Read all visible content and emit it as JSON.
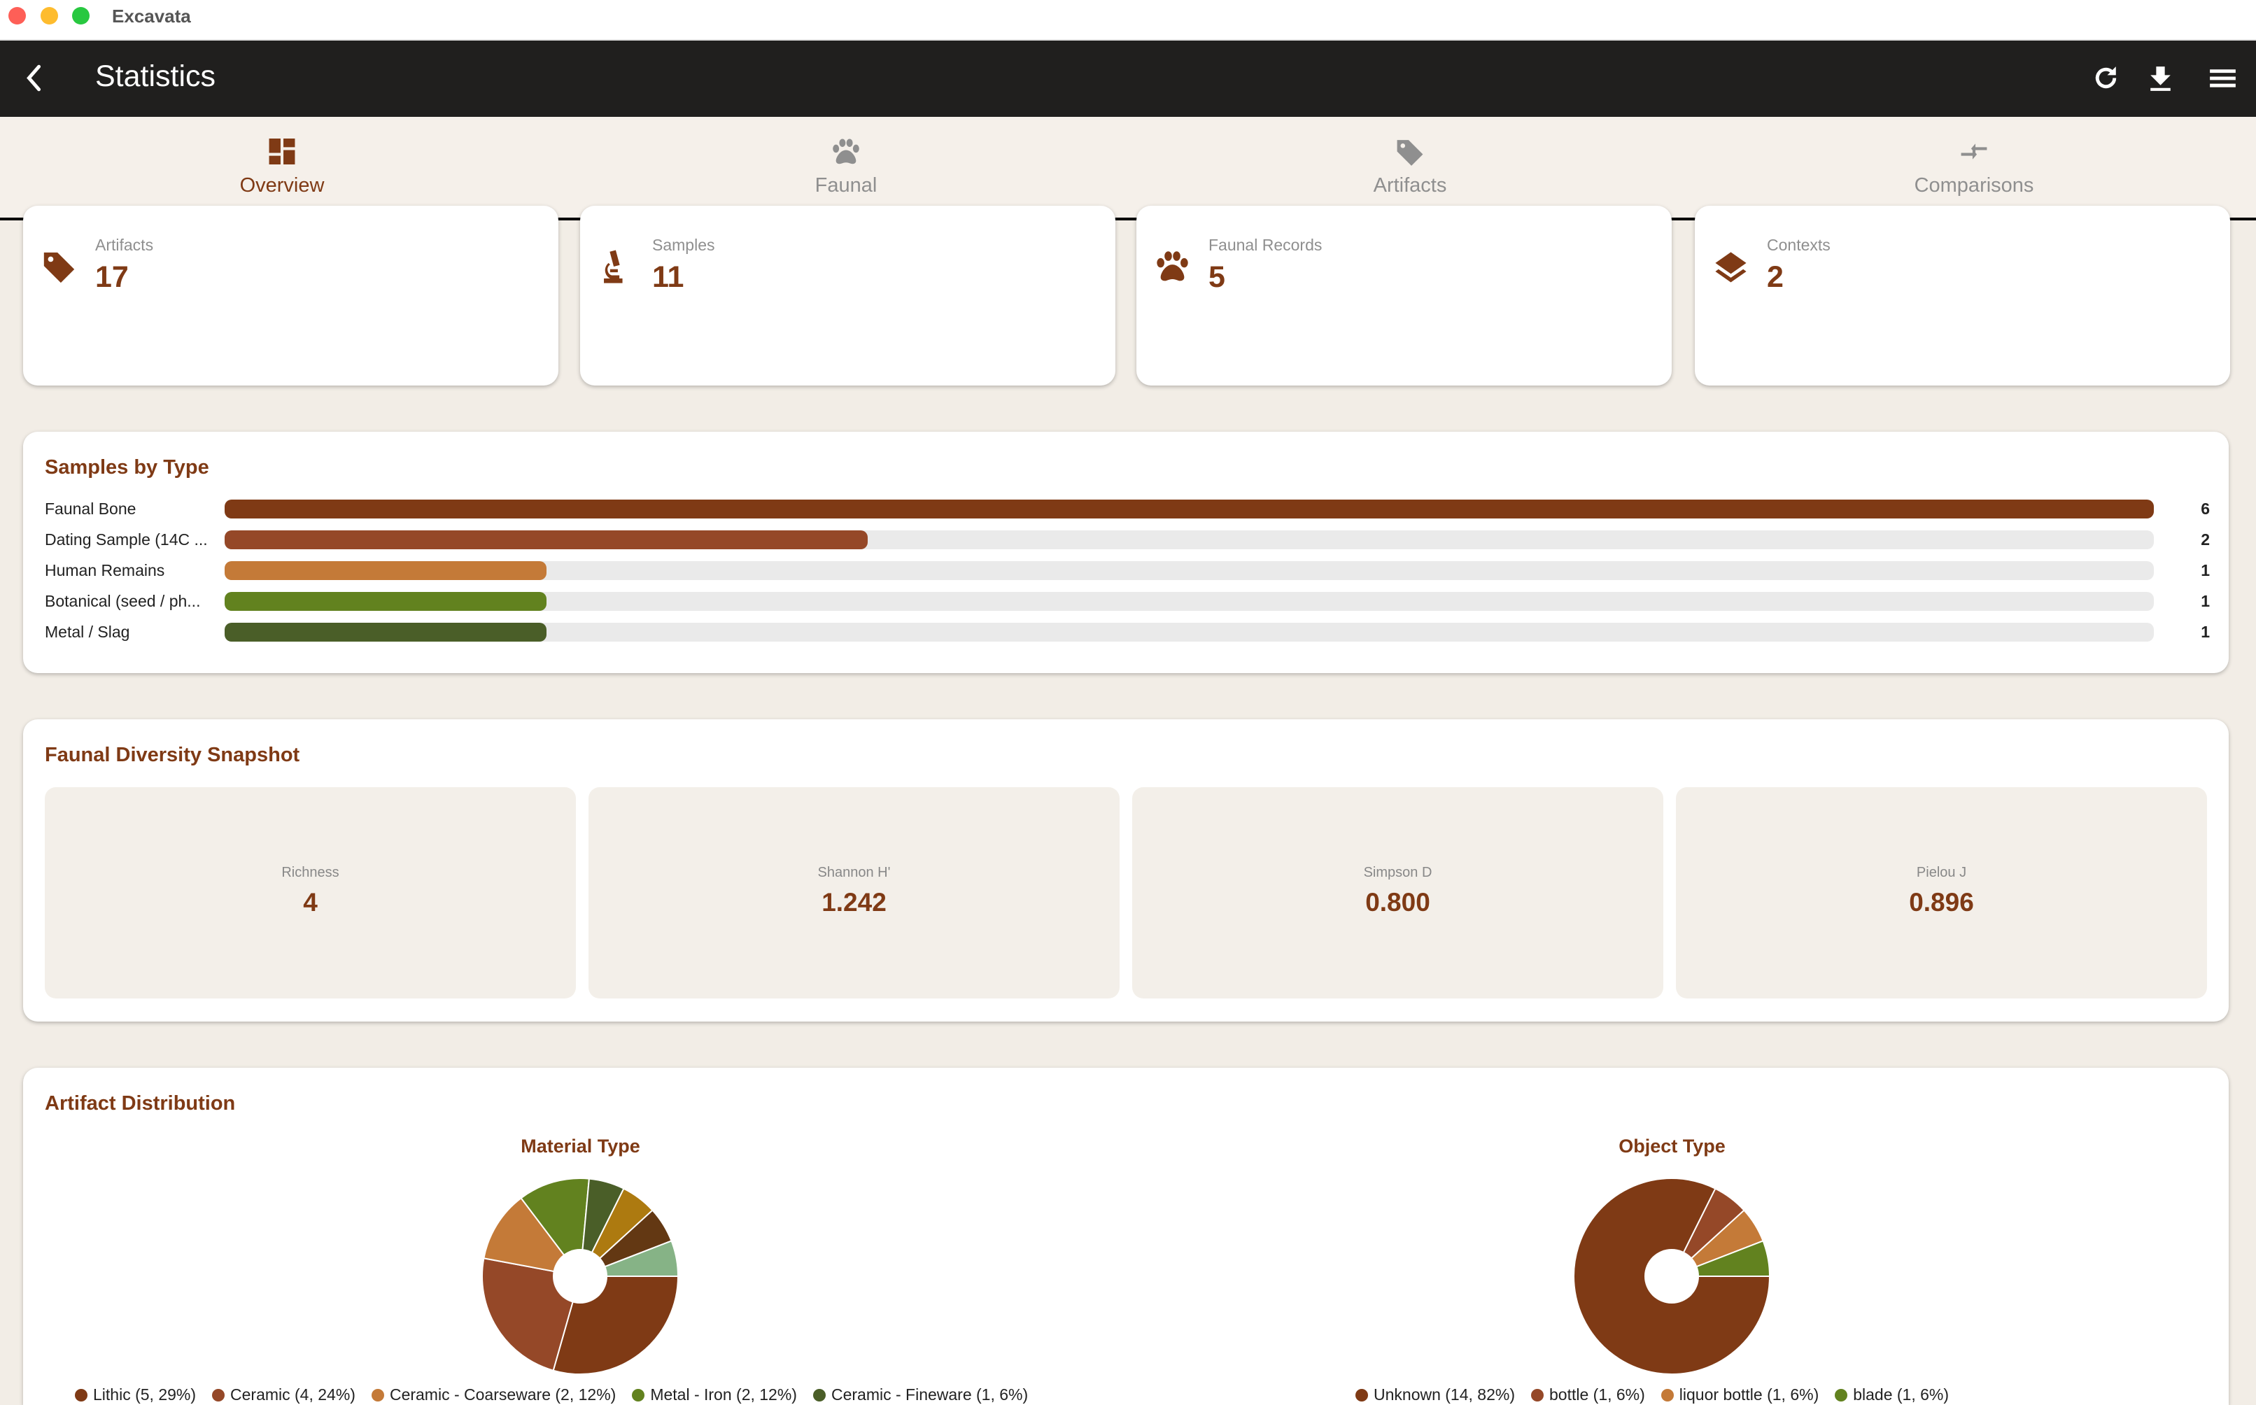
{
  "window": {
    "app_title": "Excavata"
  },
  "header": {
    "title": "Statistics",
    "icons": [
      "back-chevron-icon",
      "refresh-icon",
      "download-icon",
      "menu-icon"
    ]
  },
  "tabs": [
    {
      "label": "Overview",
      "icon": "dashboard-icon",
      "active": true
    },
    {
      "label": "Faunal",
      "icon": "paw-icon",
      "active": false
    },
    {
      "label": "Artifacts",
      "icon": "tag-icon",
      "active": false
    },
    {
      "label": "Comparisons",
      "icon": "compare-arrows-icon",
      "active": false
    }
  ],
  "stats": [
    {
      "label": "Artifacts",
      "value": "17",
      "icon": "tag-icon"
    },
    {
      "label": "Samples",
      "value": "11",
      "icon": "microscope-icon"
    },
    {
      "label": "Faunal Records",
      "value": "5",
      "icon": "paw-icon"
    },
    {
      "label": "Contexts",
      "value": "2",
      "icon": "layers-icon"
    }
  ],
  "colors": {
    "accent": "#7f3a15",
    "header_bg": "#201f1e",
    "tab_bg": "#f5f0ea",
    "page_bg": "#f2ede6"
  },
  "samples_by_type": {
    "title": "Samples by Type",
    "chart_data": {
      "type": "bar",
      "orientation": "horizontal",
      "categories": [
        "Faunal Bone",
        "Dating Sample (14C ...",
        "Human Remains",
        "Botanical (seed / ph...",
        "Metal / Slag"
      ],
      "values": [
        6,
        2,
        1,
        1,
        1
      ],
      "colors": [
        "#7f3a15",
        "#954828",
        "#c47a38",
        "#62821f",
        "#4a5e28"
      ],
      "xlim": [
        0,
        6
      ]
    }
  },
  "faunal_diversity": {
    "title": "Faunal Diversity Snapshot",
    "metrics": [
      {
        "label": "Richness",
        "value": "4"
      },
      {
        "label": "Shannon H'",
        "value": "1.242"
      },
      {
        "label": "Simpson D",
        "value": "0.800"
      },
      {
        "label": "Pielou J",
        "value": "0.896"
      }
    ]
  },
  "artifact_distribution": {
    "title": "Artifact Distribution",
    "chart_data": [
      {
        "type": "pie",
        "title": "Material Type",
        "donut": true,
        "slices": [
          {
            "label": "Lithic (5, 29%)",
            "value": 5,
            "color": "#7f3a15"
          },
          {
            "label": "Ceramic (4, 24%)",
            "value": 4,
            "color": "#954828"
          },
          {
            "label": "Ceramic - Coarseware (2, 12%)",
            "value": 2,
            "color": "#c47a38"
          },
          {
            "label": "Metal - Iron (2, 12%)",
            "value": 2,
            "color": "#62821f"
          },
          {
            "label": "Ceramic - Fineware (1, 6%)",
            "value": 1,
            "color": "#4a5e28"
          },
          {
            "label": "",
            "value": 1,
            "color": "#ad7a10"
          },
          {
            "label": "",
            "value": 1,
            "color": "#633813"
          },
          {
            "label": "",
            "value": 1,
            "color": "#86b386"
          }
        ]
      },
      {
        "type": "pie",
        "title": "Object Type",
        "donut": true,
        "slices": [
          {
            "label": "Unknown (14, 82%)",
            "value": 14,
            "color": "#7f3a15"
          },
          {
            "label": "bottle (1, 6%)",
            "value": 1,
            "color": "#954828"
          },
          {
            "label": "liquor bottle (1, 6%)",
            "value": 1,
            "color": "#c47a38"
          },
          {
            "label": "blade (1, 6%)",
            "value": 1,
            "color": "#62821f"
          }
        ]
      }
    ]
  }
}
